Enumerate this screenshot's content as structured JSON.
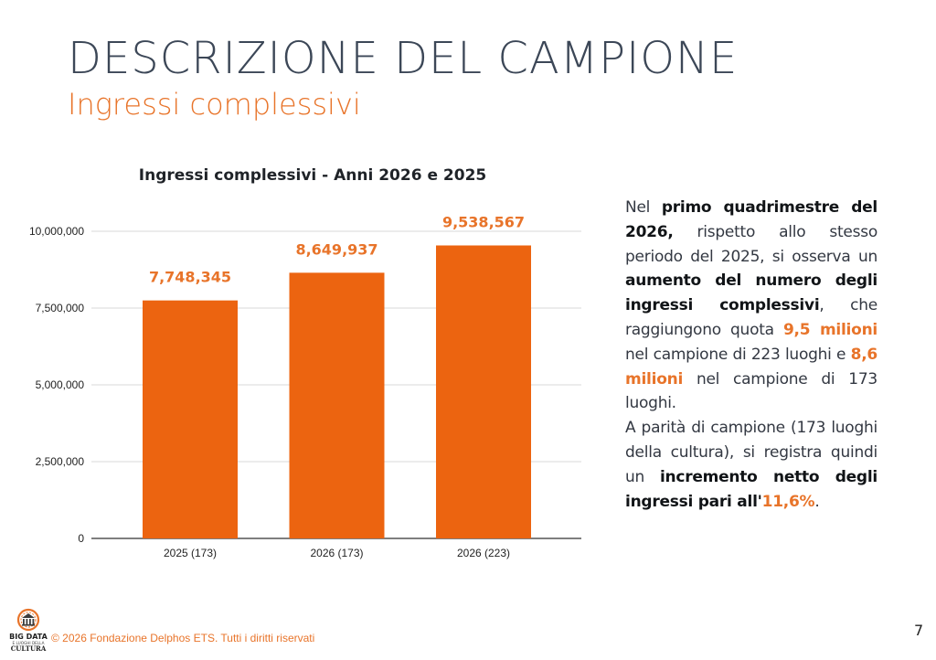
{
  "slide": {
    "title": "DESCRIZIONE DEL CAMPIONE",
    "subtitle": "Ingressi complessivi",
    "page_number": "7"
  },
  "chart_data": {
    "type": "bar",
    "title": "Ingressi complessivi - Anni 2026 e 2025",
    "xlabel": "",
    "ylabel": "",
    "categories": [
      "2025 (173)",
      "2026 (173)",
      "2026 (223)"
    ],
    "values": [
      7748345,
      8649937,
      9538567
    ],
    "value_labels": [
      "7,748,345",
      "8,649,937",
      "9,538,567"
    ],
    "yticks": [
      0,
      2500000,
      5000000,
      7500000,
      10000000
    ],
    "ytick_labels": [
      "0",
      "2,500,000",
      "5,000,000",
      "7,500,000",
      "10,000,000"
    ],
    "ylim": [
      0,
      11000000
    ],
    "grid": true,
    "legend": "none",
    "bar_color": "#ec6410",
    "label_color": "#e8742a",
    "grid_color": "#d9d9d9"
  },
  "text": {
    "p1_a": "Nel ",
    "p1_b": "primo quadrimestre del 2026,",
    "p1_c": " rispetto allo stesso periodo del 2025, si osserva un ",
    "p1_d": "aumento del numero degli ingressi complessivi",
    "p1_e": ", che raggiungono quota ",
    "p1_f": "9,5 milioni",
    "p1_g": " nel campione di 223 luoghi e ",
    "p1_h": "8,6 milioni",
    "p1_i": " nel campione di 173 luoghi.",
    "p2_a": "A parità di campione (173 luoghi della cultura), si registra quindi un ",
    "p2_b": "incremento netto degli ingressi pari all'",
    "p2_c": "11,6%",
    "p2_d": "."
  },
  "footer": {
    "copyright": "© 2026 Fondazione Delphos ETS. Tutti i diritti riservati",
    "logo_text_top": "BIG DATA",
    "logo_text_mid": "E LUOGHI DELLA",
    "logo_text_bottom": "CULTURA"
  },
  "colors": {
    "accent": "#e8742a",
    "title": "#3c4757"
  }
}
